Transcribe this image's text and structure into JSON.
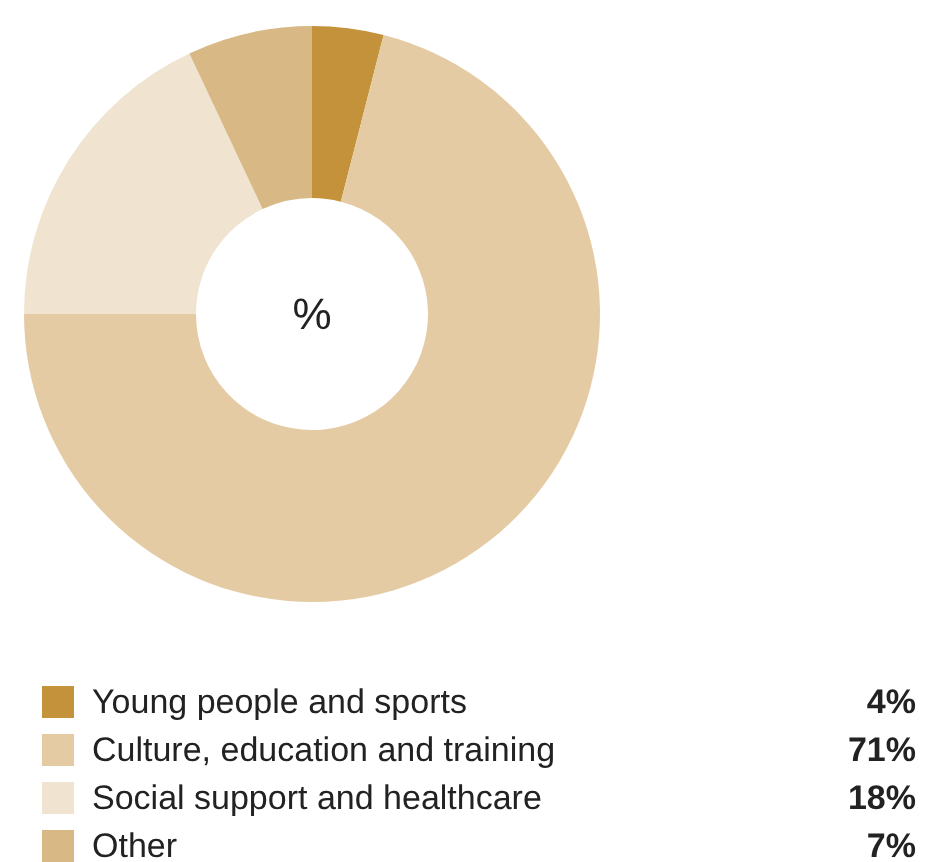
{
  "chart_data": {
    "type": "donut",
    "title": "%",
    "categories": [
      "Young people and sports",
      "Culture, education and training",
      "Social support and healthcare",
      "Other"
    ],
    "values": [
      4,
      71,
      18,
      7
    ],
    "colors": [
      "#c4923a",
      "#e4cba3",
      "#f0e3cf",
      "#d8b884"
    ],
    "legend": "bottom",
    "value_labels": [
      "4%",
      "71%",
      "18%",
      "7%"
    ]
  }
}
